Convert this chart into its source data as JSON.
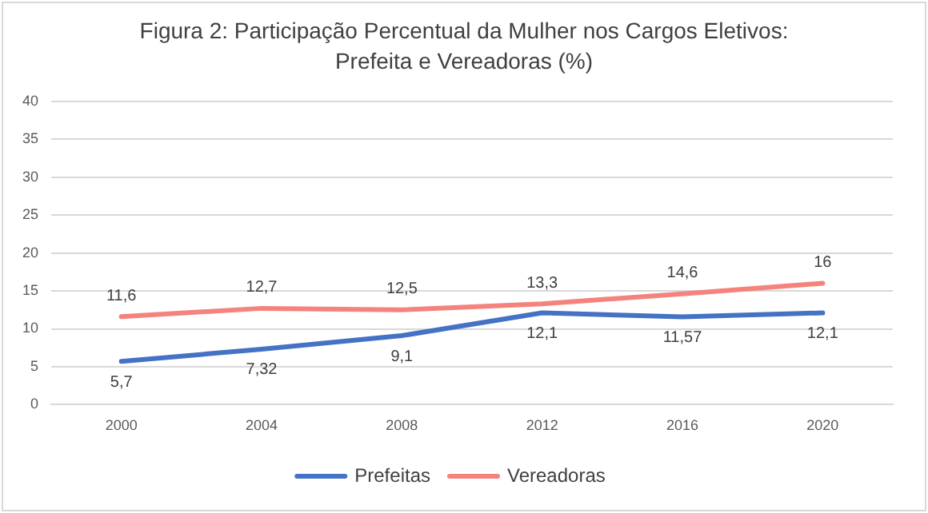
{
  "chart_data": {
    "type": "line",
    "title": "Figura 2: Participação Percentual da Mulher nos Cargos Eletivos: Prefeita e Vereadoras (%)",
    "categories": [
      "2000",
      "2004",
      "2008",
      "2012",
      "2016",
      "2020"
    ],
    "series": [
      {
        "name": "Prefeitas",
        "color": "#4472c4",
        "values": [
          5.7,
          7.32,
          9.1,
          12.1,
          11.57,
          12.1
        ],
        "value_labels": [
          "5,7",
          "7,32",
          "9,1",
          "12,1",
          "11,57",
          "12,1"
        ]
      },
      {
        "name": "Vereadoras",
        "color": "#f4837d",
        "values": [
          11.6,
          12.7,
          12.5,
          13.3,
          14.6,
          16
        ],
        "value_labels": [
          "11,6",
          "12,7",
          "12,5",
          "13,3",
          "14,6",
          "16"
        ]
      }
    ],
    "ylim": [
      0,
      40
    ],
    "yticks": [
      0,
      5,
      10,
      15,
      20,
      25,
      30,
      35,
      40
    ],
    "grid": "y",
    "legend": "bottom",
    "marker": "none",
    "line_style": "solid"
  }
}
